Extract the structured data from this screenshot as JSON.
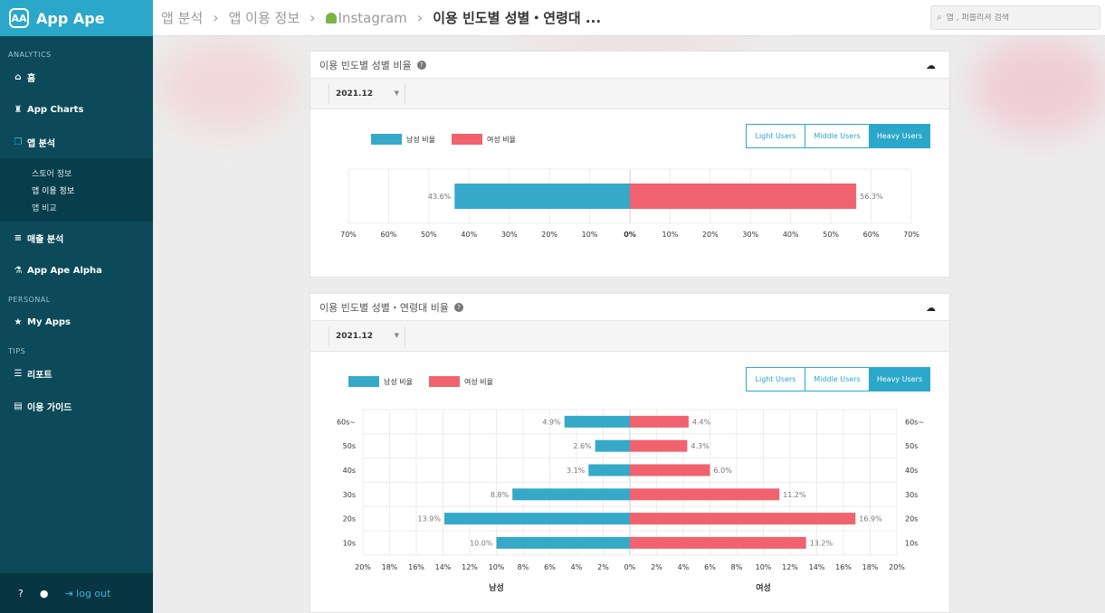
{
  "brand": {
    "logo_text": "AA",
    "title": "App Ape"
  },
  "sidebar": {
    "analytics_label": "ANALYTICS",
    "home": "홈",
    "app_charts": "App Charts",
    "app_analysis": "앱 분석",
    "sub_items": [
      "스토어 정보",
      "앱 이용 정보",
      "앱 비교"
    ],
    "revenue": "매출 분석",
    "alpha": "App Ape Alpha",
    "personal_label": "PERSONAL",
    "my_apps": "My Apps",
    "tips_label": "TIPS",
    "report": "리포트",
    "guide": "이용 가이드",
    "logout": "log out"
  },
  "breadcrumb": {
    "items": [
      "앱 분석",
      "앱 이용 정보",
      "Instagram"
    ],
    "current": "이용 빈도별 성별・연령대 ..."
  },
  "search": {
    "placeholder": "앱 , 퍼블리셔 검색"
  },
  "colors": {
    "male": "#36a9c8",
    "female": "#f0636e",
    "accent": "#2aa7c9"
  },
  "legend": {
    "male": "남성 비율",
    "female": "여성 비율"
  },
  "user_types": [
    "Light Users",
    "Middle Users",
    "Heavy Users"
  ],
  "selected_user_type": "Heavy Users",
  "card1": {
    "title": "이용 빈도별 성별 비율",
    "period": "2021.12"
  },
  "card2": {
    "title": "이용 빈도별 성별・연령대 비율",
    "period": "2021.12"
  },
  "chart_data": [
    {
      "type": "bar",
      "orientation": "horizontal-diverging",
      "title": "이용 빈도별 성별 비율",
      "series": [
        {
          "name": "남성 비율",
          "values": [
            43.6
          ],
          "labels": [
            "43.6%"
          ]
        },
        {
          "name": "여성 비율",
          "values": [
            56.3
          ],
          "labels": [
            "56.3%"
          ]
        }
      ],
      "xlim": [
        -70,
        70
      ],
      "ticks": [
        "70%",
        "60%",
        "50%",
        "40%",
        "30%",
        "20%",
        "10%",
        "0%",
        "10%",
        "20%",
        "30%",
        "40%",
        "50%",
        "60%",
        "70%"
      ]
    },
    {
      "type": "bar",
      "orientation": "horizontal-diverging",
      "title": "이용 빈도별 성별・연령대 비율",
      "categories": [
        "60s~",
        "50s",
        "40s",
        "30s",
        "20s",
        "10s"
      ],
      "series": [
        {
          "name": "남성 비율",
          "values": [
            4.9,
            2.6,
            3.1,
            8.8,
            13.9,
            10.0
          ],
          "labels": [
            "4.9%",
            "2.6%",
            "3.1%",
            "8.8%",
            "13.9%",
            "10.0%"
          ]
        },
        {
          "name": "여성 비율",
          "values": [
            4.4,
            4.3,
            6.0,
            11.2,
            16.9,
            13.2
          ],
          "labels": [
            "4.4%",
            "4.3%",
            "6.0%",
            "11.2%",
            "16.9%",
            "13.2%"
          ]
        }
      ],
      "xlim": [
        -20,
        20
      ],
      "ticks": [
        "20%",
        "18%",
        "16%",
        "14%",
        "12%",
        "10%",
        "8%",
        "6%",
        "4%",
        "2%",
        "0%",
        "2%",
        "4%",
        "6%",
        "8%",
        "10%",
        "12%",
        "14%",
        "16%",
        "18%",
        "20%"
      ],
      "xlabel_left": "남성",
      "xlabel_right": "여성"
    }
  ]
}
